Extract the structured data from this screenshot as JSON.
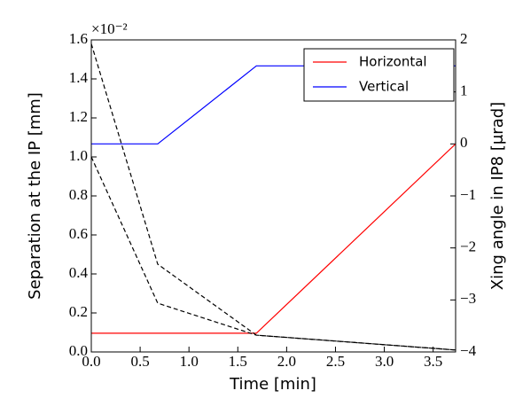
{
  "chart_data": {
    "type": "line",
    "xlabel": "Time [min]",
    "ylabel": "Separation at the IP [mm]",
    "y2label": "Xing angle in IP8 [μrad]",
    "y_offset_label": "×10⁻²",
    "x": [
      0,
      0.68,
      1.69,
      3.73
    ],
    "xlim": [
      0,
      3.73
    ],
    "xticks": [
      {
        "value": 0,
        "label": "0.0"
      },
      0.5,
      {
        "value": 1,
        "label": "1.0"
      },
      1.5,
      {
        "value": 2,
        "label": "2.0"
      },
      2.5,
      {
        "value": 3,
        "label": "3.0"
      },
      3.5
    ],
    "ylim": [
      0,
      1.6
    ],
    "yticks": [
      {
        "value": 0,
        "label": "0.0"
      },
      0.2,
      0.4,
      0.6,
      0.8,
      {
        "value": 1,
        "label": "1.0"
      },
      1.2,
      1.4,
      1.6
    ],
    "y2lim": [
      -4,
      2
    ],
    "y2ticks": [
      {
        "value": -4,
        "label": "−4"
      },
      {
        "value": -3,
        "label": "−3"
      },
      {
        "value": -2,
        "label": "−2"
      },
      {
        "value": -1,
        "label": "−1"
      },
      0,
      1,
      2
    ],
    "legend": "upper right",
    "series": [
      {
        "name": "Horizontal",
        "color": "#ff0000",
        "axis": "y2",
        "values": [
          -3.64,
          -3.64,
          -3.64,
          0
        ]
      },
      {
        "name": "Vertical",
        "color": "#0000ff",
        "axis": "y2",
        "values": [
          0,
          0,
          1.5,
          1.5
        ]
      },
      {
        "color": "#000000",
        "linestyle": "dashed",
        "values": [
          1.58,
          0.45,
          0.086,
          0.01
        ]
      },
      {
        "color": "#000000",
        "linestyle": "dashed",
        "values": [
          1.0,
          0.25,
          0.086,
          0.01
        ]
      }
    ]
  }
}
